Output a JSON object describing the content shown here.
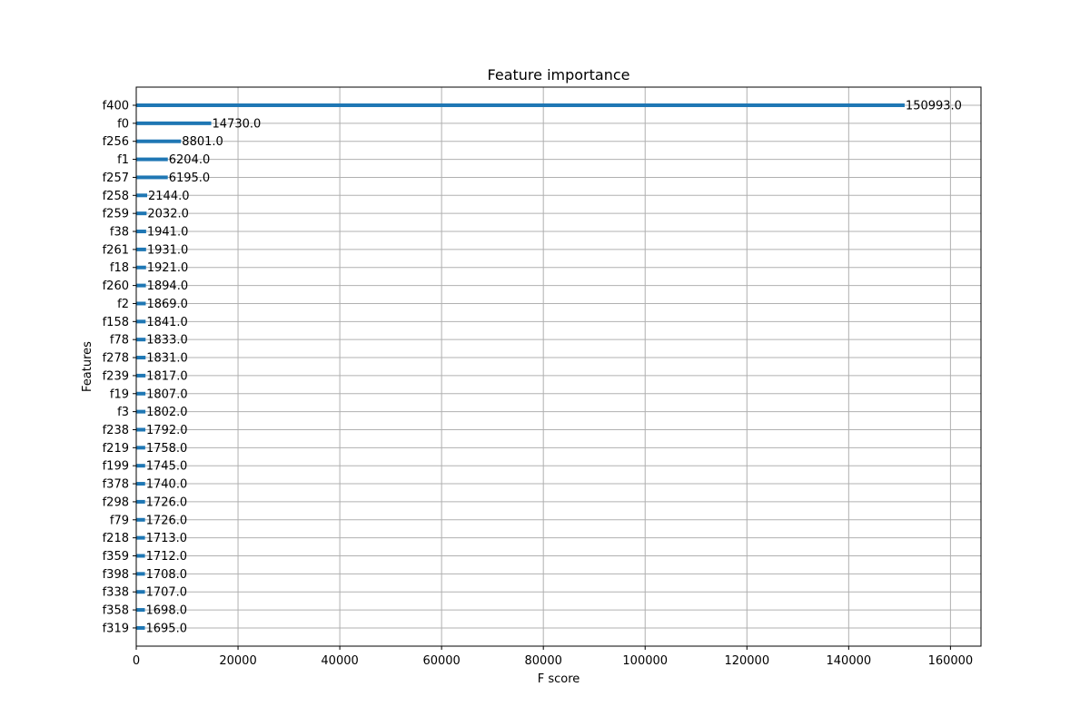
{
  "chart_data": {
    "type": "bar",
    "orientation": "horizontal",
    "title": "Feature importance",
    "xlabel": "F score",
    "ylabel": "Features",
    "xlim": [
      0,
      166000
    ],
    "xticks": [
      0,
      20000,
      40000,
      60000,
      80000,
      100000,
      120000,
      140000,
      160000
    ],
    "grid": true,
    "bar_color": "#1f77b4",
    "categories": [
      "f400",
      "f0",
      "f256",
      "f1",
      "f257",
      "f258",
      "f259",
      "f38",
      "f261",
      "f18",
      "f260",
      "f2",
      "f158",
      "f78",
      "f278",
      "f239",
      "f19",
      "f3",
      "f238",
      "f219",
      "f199",
      "f378",
      "f298",
      "f79",
      "f218",
      "f359",
      "f398",
      "f338",
      "f358",
      "f319"
    ],
    "values": [
      150993,
      14730,
      8801,
      6204,
      6195,
      2144,
      2032,
      1941,
      1931,
      1921,
      1894,
      1869,
      1841,
      1833,
      1831,
      1817,
      1807,
      1802,
      1792,
      1758,
      1745,
      1740,
      1726,
      1726,
      1713,
      1712,
      1708,
      1707,
      1698,
      1695
    ],
    "value_labels": [
      "150993.0",
      "14730.0",
      "8801.0",
      "6204.0",
      "6195.0",
      "2144.0",
      "2032.0",
      "1941.0",
      "1931.0",
      "1921.0",
      "1894.0",
      "1869.0",
      "1841.0",
      "1833.0",
      "1831.0",
      "1817.0",
      "1807.0",
      "1802.0",
      "1792.0",
      "1758.0",
      "1745.0",
      "1740.0",
      "1726.0",
      "1726.0",
      "1713.0",
      "1712.0",
      "1708.0",
      "1707.0",
      "1698.0",
      "1695.0"
    ]
  }
}
